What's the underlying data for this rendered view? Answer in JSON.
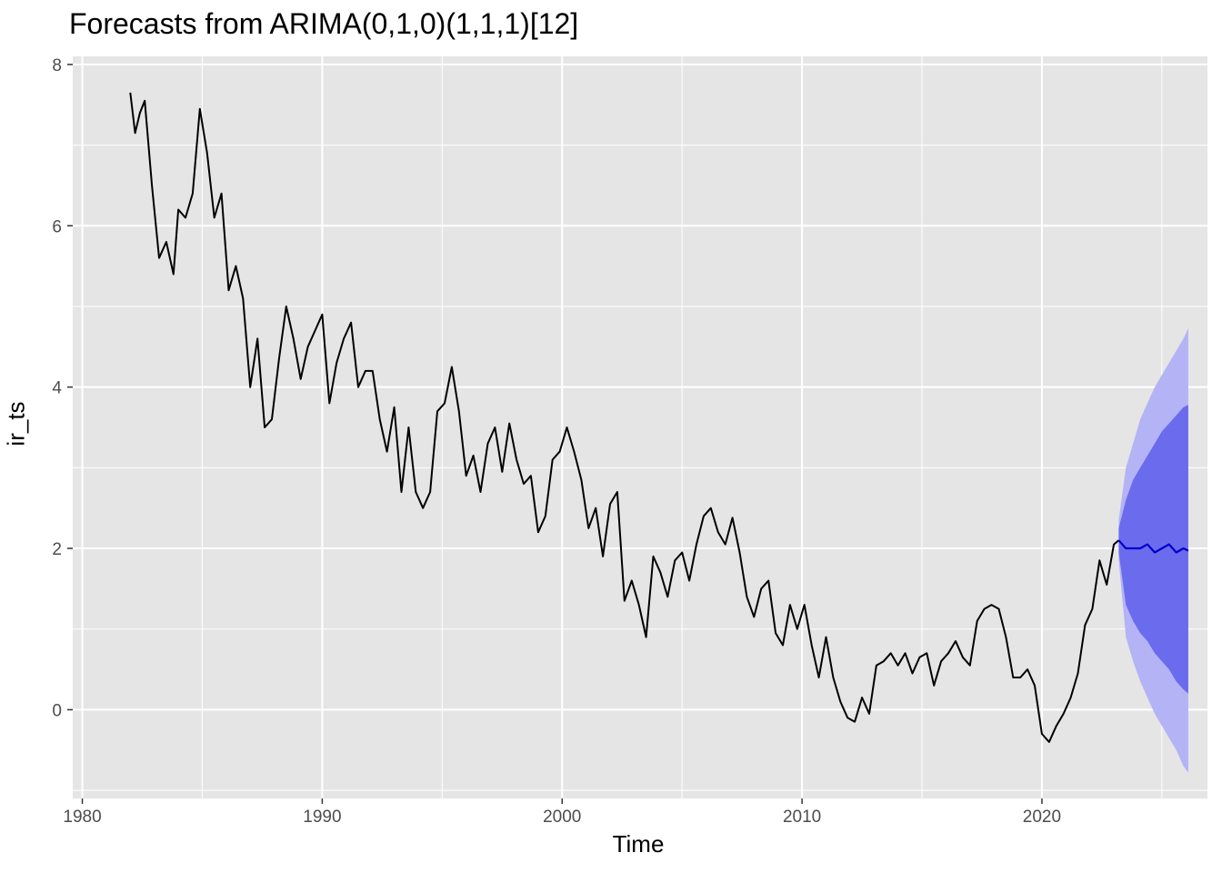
{
  "chart_data": {
    "type": "line",
    "title": "Forecasts from ARIMA(0,1,0)(1,1,1)[12]",
    "xlabel": "Time",
    "ylabel": "ir_ts",
    "xlim": [
      1979.6,
      2026.9
    ],
    "ylim": [
      -1.1,
      8.1
    ],
    "x_ticks": [
      1980,
      1990,
      2000,
      2010,
      2020
    ],
    "y_ticks": [
      0,
      2,
      4,
      6,
      8
    ],
    "grid": true,
    "colors": {
      "panel_background": "#e5e5e5",
      "grid": "#ffffff",
      "history_line": "#000000",
      "forecast_line": "#0000cc",
      "pi95": "#b3b3f5",
      "pi80": "#6b6bee",
      "tick_text": "#4d4d4d"
    },
    "history": {
      "x": [
        1982.0,
        1982.2,
        1982.4,
        1982.6,
        1982.9,
        1983.2,
        1983.5,
        1983.8,
        1984.0,
        1984.3,
        1984.6,
        1984.9,
        1985.2,
        1985.5,
        1985.8,
        1986.1,
        1986.4,
        1986.7,
        1987.0,
        1987.3,
        1987.6,
        1987.9,
        1988.2,
        1988.5,
        1988.8,
        1989.1,
        1989.4,
        1989.7,
        1990.0,
        1990.3,
        1990.6,
        1990.9,
        1991.2,
        1991.5,
        1991.8,
        1992.1,
        1992.4,
        1992.7,
        1993.0,
        1993.3,
        1993.6,
        1993.9,
        1994.2,
        1994.5,
        1994.8,
        1995.1,
        1995.4,
        1995.7,
        1996.0,
        1996.3,
        1996.6,
        1996.9,
        1997.2,
        1997.5,
        1997.8,
        1998.1,
        1998.4,
        1998.7,
        1999.0,
        1999.3,
        1999.6,
        1999.9,
        2000.2,
        2000.5,
        2000.8,
        2001.1,
        2001.4,
        2001.7,
        2002.0,
        2002.3,
        2002.6,
        2002.9,
        2003.2,
        2003.5,
        2003.8,
        2004.1,
        2004.4,
        2004.7,
        2005.0,
        2005.3,
        2005.6,
        2005.9,
        2006.2,
        2006.5,
        2006.8,
        2007.1,
        2007.4,
        2007.7,
        2008.0,
        2008.3,
        2008.6,
        2008.9,
        2009.2,
        2009.5,
        2009.8,
        2010.1,
        2010.4,
        2010.7,
        2011.0,
        2011.3,
        2011.6,
        2011.9,
        2012.2,
        2012.5,
        2012.8,
        2013.1,
        2013.4,
        2013.7,
        2014.0,
        2014.3,
        2014.6,
        2014.9,
        2015.2,
        2015.5,
        2015.8,
        2016.1,
        2016.4,
        2016.7,
        2017.0,
        2017.3,
        2017.6,
        2017.9,
        2018.2,
        2018.5,
        2018.8,
        2019.1,
        2019.4,
        2019.7,
        2020.0,
        2020.3,
        2020.6,
        2020.9,
        2021.2,
        2021.5,
        2021.8,
        2022.1,
        2022.4,
        2022.7,
        2023.0,
        2023.2
      ],
      "y": [
        7.65,
        7.15,
        7.4,
        7.55,
        6.5,
        5.6,
        5.8,
        5.4,
        6.2,
        6.1,
        6.4,
        7.45,
        6.9,
        6.1,
        6.4,
        5.2,
        5.5,
        5.1,
        4.0,
        4.6,
        3.5,
        3.6,
        4.35,
        5.0,
        4.6,
        4.1,
        4.5,
        4.7,
        4.9,
        3.8,
        4.3,
        4.6,
        4.8,
        4.0,
        4.2,
        4.2,
        3.6,
        3.2,
        3.75,
        2.7,
        3.5,
        2.7,
        2.5,
        2.7,
        3.7,
        3.8,
        4.25,
        3.7,
        2.9,
        3.15,
        2.7,
        3.3,
        3.5,
        2.95,
        3.55,
        3.1,
        2.8,
        2.9,
        2.2,
        2.4,
        3.1,
        3.2,
        3.5,
        3.2,
        2.85,
        2.25,
        2.5,
        1.9,
        2.55,
        2.7,
        1.35,
        1.6,
        1.3,
        0.9,
        1.9,
        1.7,
        1.4,
        1.85,
        1.95,
        1.6,
        2.05,
        2.4,
        2.5,
        2.2,
        2.05,
        2.38,
        1.95,
        1.4,
        1.15,
        1.5,
        1.6,
        0.95,
        0.8,
        1.3,
        1.0,
        1.3,
        0.8,
        0.4,
        0.9,
        0.4,
        0.1,
        -0.1,
        -0.15,
        0.15,
        -0.05,
        0.55,
        0.6,
        0.7,
        0.55,
        0.7,
        0.45,
        0.65,
        0.7,
        0.3,
        0.6,
        0.7,
        0.85,
        0.65,
        0.55,
        1.1,
        1.25,
        1.3,
        1.25,
        0.9,
        0.4,
        0.4,
        0.5,
        0.3,
        -0.3,
        -0.4,
        -0.2,
        -0.05,
        0.15,
        0.45,
        1.05,
        1.25,
        1.85,
        1.55,
        2.05,
        2.1
      ]
    },
    "forecast": {
      "x": [
        2023.2,
        2023.5,
        2023.8,
        2024.1,
        2024.4,
        2024.7,
        2025.0,
        2025.3,
        2025.6,
        2025.9,
        2026.1
      ],
      "mean": [
        2.1,
        2.0,
        2.0,
        2.0,
        2.05,
        1.95,
        2.0,
        2.05,
        1.95,
        2.0,
        1.97
      ],
      "lo80": [
        1.95,
        1.3,
        1.1,
        0.95,
        0.85,
        0.7,
        0.6,
        0.5,
        0.35,
        0.25,
        0.2
      ],
      "hi80": [
        2.25,
        2.6,
        2.85,
        3.0,
        3.15,
        3.3,
        3.45,
        3.55,
        3.65,
        3.75,
        3.78
      ],
      "lo95": [
        1.85,
        0.9,
        0.6,
        0.35,
        0.15,
        -0.05,
        -0.2,
        -0.35,
        -0.5,
        -0.7,
        -0.78
      ],
      "hi95": [
        2.35,
        3.0,
        3.3,
        3.6,
        3.8,
        4.0,
        4.15,
        4.3,
        4.45,
        4.6,
        4.73
      ]
    }
  }
}
